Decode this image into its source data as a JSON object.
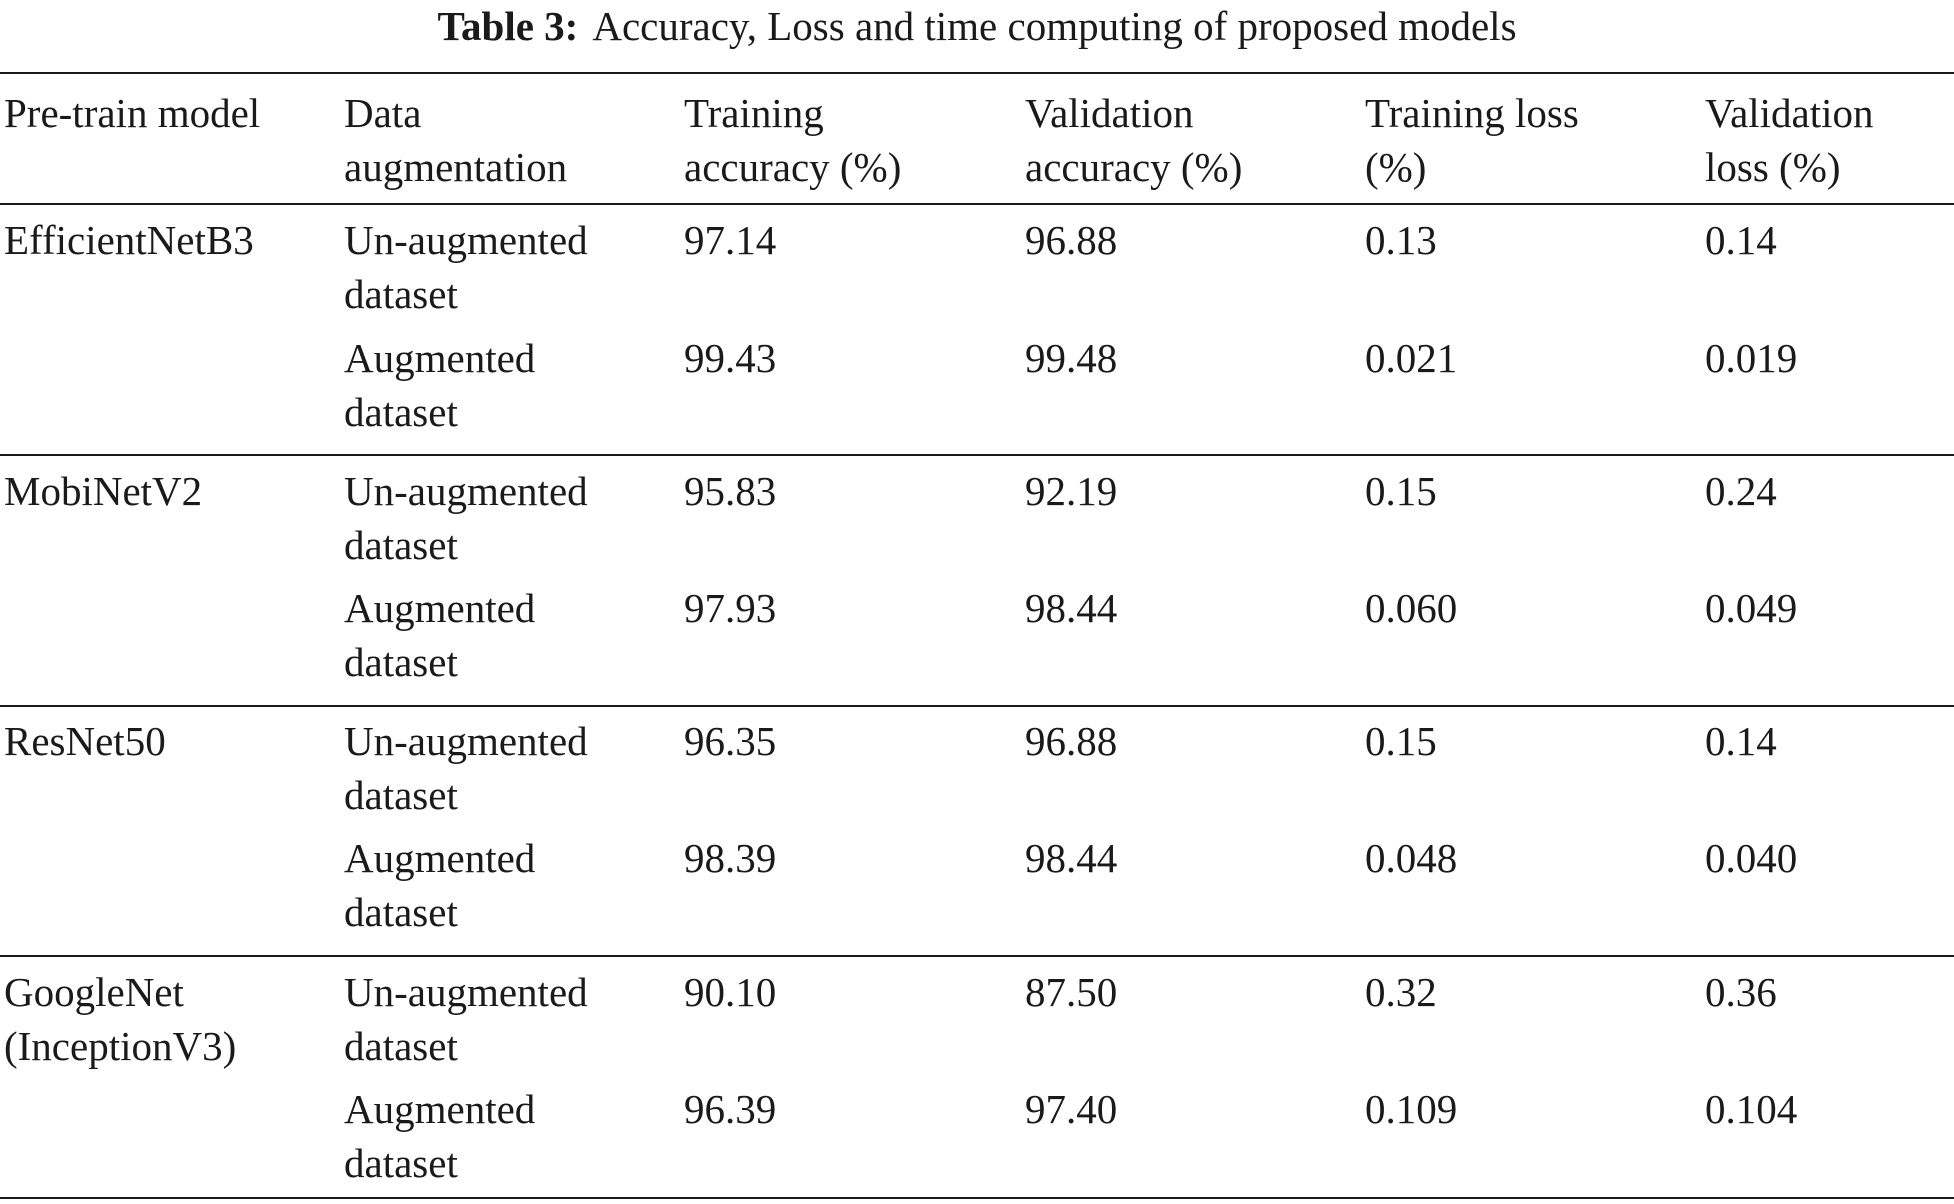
{
  "table": {
    "caption_label": "Table 3:",
    "caption_text": "Accuracy, Loss and time computing of proposed models",
    "headers": [
      "Pre-train model",
      "Data\naugmentation",
      "Training\naccuracy (%)",
      "Validation\naccuracy (%)",
      "Training loss\n(%)",
      "Validation\nloss (%)"
    ],
    "groups": [
      {
        "model": "EfficientNetB3",
        "rows": [
          [
            "Un-augmented\ndataset",
            "97.14",
            "96.88",
            "0.13",
            "0.14"
          ],
          [
            "Augmented\ndataset",
            "99.43",
            "99.48",
            "0.021",
            "0.019"
          ]
        ]
      },
      {
        "model": "MobiNetV2",
        "rows": [
          [
            "Un-augmented\ndataset",
            "95.83",
            "92.19",
            "0.15",
            "0.24"
          ],
          [
            "Augmented\ndataset",
            "97.93",
            "98.44",
            "0.060",
            "0.049"
          ]
        ]
      },
      {
        "model": "ResNet50",
        "rows": [
          [
            "Un-augmented\ndataset",
            "96.35",
            "96.88",
            "0.15",
            "0.14"
          ],
          [
            "Augmented\ndataset",
            "98.39",
            "98.44",
            "0.048",
            "0.040"
          ]
        ]
      },
      {
        "model": "GoogleNet\n(InceptionV3)",
        "rows": [
          [
            "Un-augmented\ndataset",
            "90.10",
            "87.50",
            "0.32",
            "0.36"
          ],
          [
            "Augmented\ndataset",
            "96.39",
            "97.40",
            "0.109",
            "0.104"
          ]
        ]
      }
    ]
  }
}
